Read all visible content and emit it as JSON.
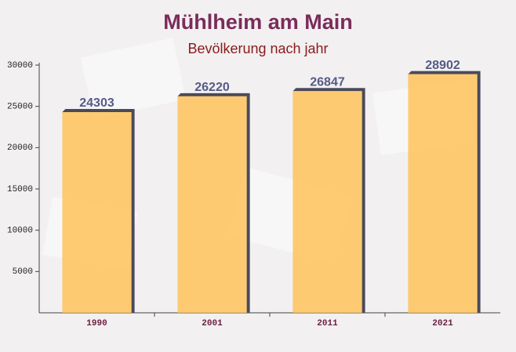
{
  "chart_data": {
    "type": "bar",
    "title": "Mühlheim am Main",
    "subtitle": "Bevölkerung nach jahr",
    "categories": [
      "1990",
      "2001",
      "2011",
      "2021"
    ],
    "values": [
      24303,
      26220,
      26847,
      28902
    ],
    "color": "#ffc35a",
    "ylim": [
      0,
      30000
    ],
    "yticks": [
      5000,
      10000,
      15000,
      20000,
      25000,
      30000
    ],
    "grid": false
  }
}
